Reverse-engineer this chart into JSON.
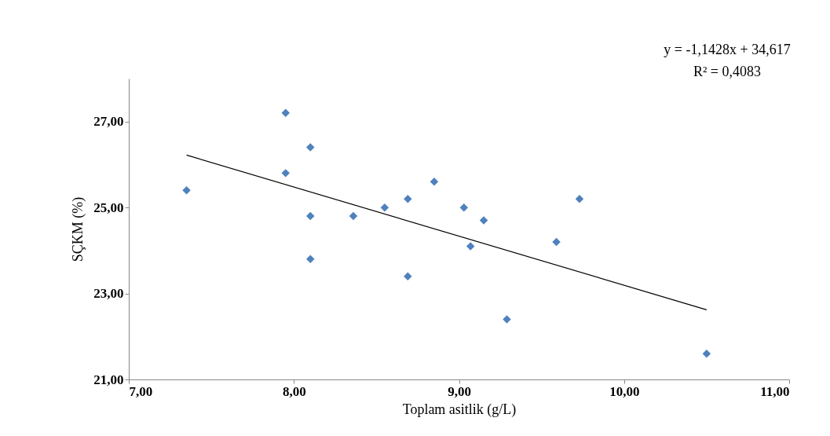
{
  "chart_data": {
    "type": "scatter",
    "xlabel": "Toplam asitlik  (g/L)",
    "ylabel": "SÇKM (%)",
    "xlim": [
      7,
      11
    ],
    "xticks": [
      {
        "value": 7,
        "label": "7,00"
      },
      {
        "value": 8,
        "label": "8,00"
      },
      {
        "value": 9,
        "label": "9,00"
      },
      {
        "value": 10,
        "label": "10,00"
      },
      {
        "value": 11,
        "label": "11,00"
      }
    ],
    "ylim": [
      21,
      28
    ],
    "yticks": [
      {
        "value": 21,
        "label": "21,00"
      },
      {
        "value": 23,
        "label": "23,00"
      },
      {
        "value": 25,
        "label": "25,00"
      },
      {
        "value": 27,
        "label": "27,00"
      }
    ],
    "grid": false,
    "annotations": [
      "y = -1,1428x + 34,617",
      "R² = 0,4083"
    ],
    "series": [
      {
        "marker": "diamond",
        "color": "#4f81bd",
        "x": [
          7.35,
          7.95,
          7.95,
          8.1,
          8.1,
          8.1,
          8.36,
          8.55,
          8.69,
          8.69,
          8.85,
          9.03,
          9.07,
          9.15,
          9.29,
          9.59,
          9.73,
          10.5
        ],
        "values": [
          25.4,
          27.2,
          25.8,
          26.4,
          24.8,
          23.8,
          24.8,
          25.0,
          25.2,
          23.4,
          25.6,
          25.0,
          24.1,
          24.7,
          22.4,
          24.2,
          25.2,
          21.6
        ]
      },
      {
        "type": "line",
        "marker": "none",
        "color": "#000000",
        "x": [
          7.35,
          10.5
        ],
        "values": [
          26.22,
          22.62
        ]
      }
    ]
  }
}
